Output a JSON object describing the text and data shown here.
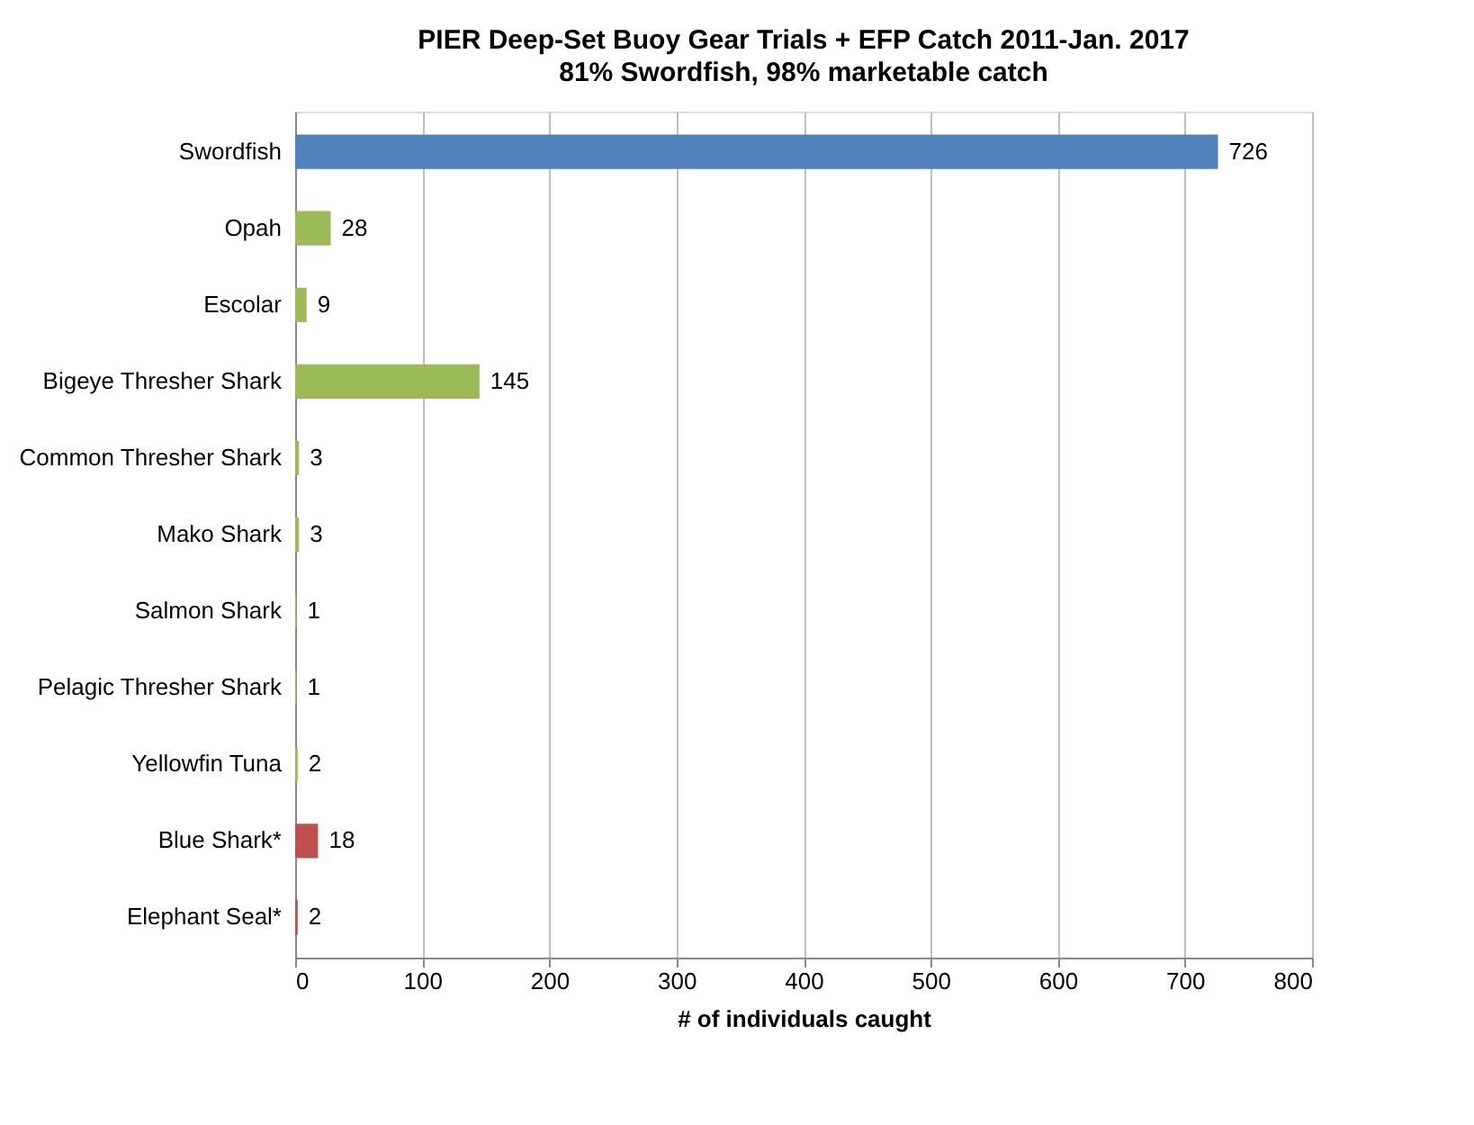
{
  "chart_data": {
    "type": "bar",
    "orientation": "horizontal",
    "title": "PIER Deep-Set Buoy Gear Trials + EFP Catch 2011-Jan. 2017",
    "subtitle": "81% Swordfish, 98% marketable catch",
    "xlabel": "# of individuals caught",
    "categories": [
      "Swordfish",
      "Opah",
      "Escolar",
      "Bigeye Thresher Shark",
      "Common Thresher Shark",
      "Mako Shark",
      "Salmon Shark",
      "Pelagic Thresher Shark",
      "Yellowfin Tuna",
      "Blue Shark*",
      "Elephant Seal*"
    ],
    "values": [
      726,
      28,
      9,
      145,
      3,
      3,
      1,
      1,
      2,
      18,
      2
    ],
    "colors": [
      "#4f81bd",
      "#9bbb59",
      "#9bbb59",
      "#9bbb59",
      "#9bbb59",
      "#9bbb59",
      "#9bbb59",
      "#9bbb59",
      "#9bbb59",
      "#c0504d",
      "#c0504d"
    ],
    "xlim": [
      0,
      800
    ],
    "xticks": [
      0,
      100,
      200,
      300,
      400,
      500,
      600,
      700,
      800
    ],
    "grid": "x",
    "data_labels": true
  }
}
